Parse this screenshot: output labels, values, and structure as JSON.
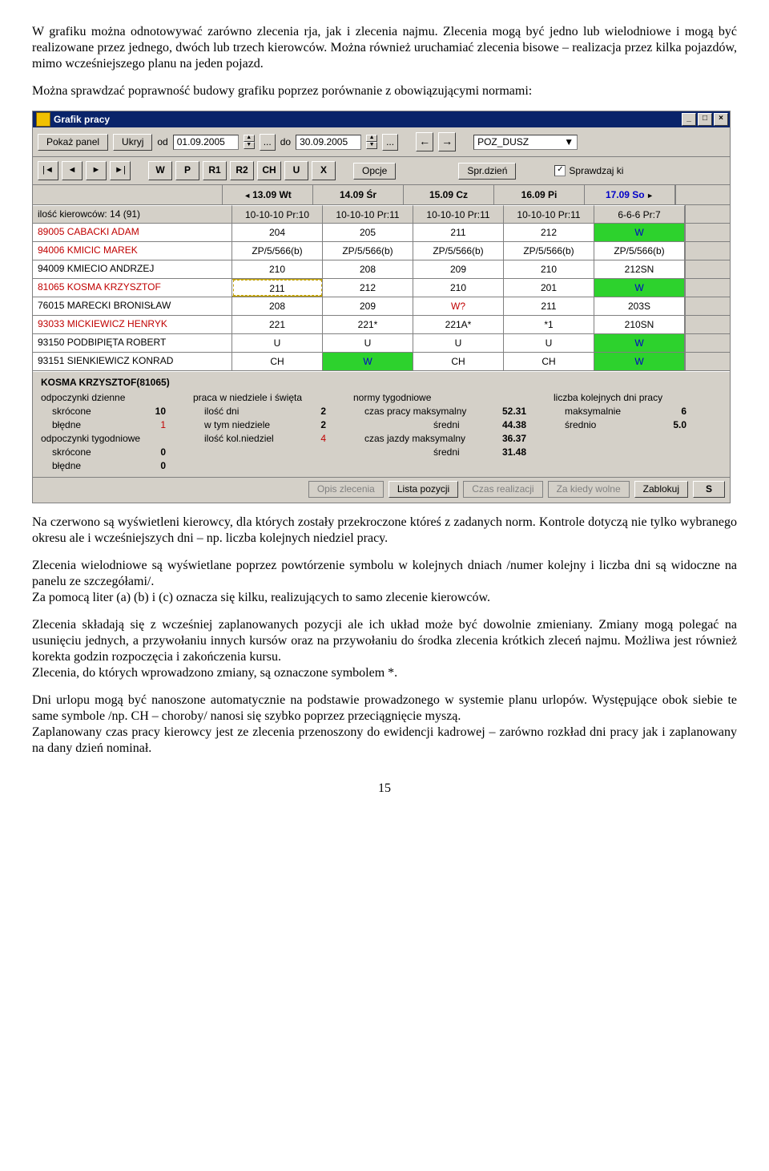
{
  "text": {
    "p1": "W grafiku można odnotowywać zarówno zlecenia rja, jak i zlecenia najmu. Zlecenia mogą być jedno lub wielodniowe i mogą być realizowane przez jednego, dwóch lub trzech kierowców. Można również uruchamiać zlecenia bisowe – realizacja przez kilka pojazdów, mimo wcześniejszego planu na jeden pojazd.",
    "p2": "Można sprawdzać poprawność budowy grafiku poprzez porównanie z obowiązującymi normami:",
    "p3": "Na czerwono są wyświetleni kierowcy, dla których zostały przekroczone któreś z zadanych norm. Kontrole dotyczą nie tylko wybranego okresu ale i wcześniejszych dni – np. liczba kolejnych niedziel pracy.",
    "p4": "Zlecenia wielodniowe są wyświetlane poprzez powtórzenie symbolu w kolejnych dniach /numer kolejny i liczba dni są widoczne na panelu ze szczegółami/.",
    "p5": "Za pomocą liter (a) (b) i (c) oznacza się kilku, realizujących to samo zlecenie kierowców.",
    "p6": "Zlecenia składają się z wcześniej zaplanowanych pozycji ale ich układ może być dowolnie zmieniany. Zmiany mogą polegać na usunięciu jednych, a przywołaniu innych kursów oraz na przywołaniu do środka zlecenia krótkich zleceń najmu. Możliwa jest również korekta godzin rozpoczęcia i zakończenia kursu.",
    "p7": "Zlecenia, do których wprowadzono zmiany, są oznaczone symbolem *.",
    "p8": "Dni urlopu mogą być nanoszone automatycznie na podstawie prowadzonego w systemie planu urlopów. Występujące obok siebie te same symbole /np. CH – choroby/ nanosi się szybko poprzez przeciągnięcie myszą.",
    "p9": "Zaplanowany czas pracy kierowcy jest ze zlecenia przenoszony do ewidencji kadrowej – zarówno rozkład dni pracy jak i zaplanowany na dany dzień nominał.",
    "page": "15"
  },
  "app": {
    "title": "Grafik pracy",
    "toolbar1": {
      "showPanel": "Pokaż panel",
      "hide": "Ukryj",
      "odLabel": "od",
      "odValue": "01.09.2005",
      "doLabel": "do",
      "doValue": "30.09.2005",
      "dots": "...",
      "selectValue": "POZ_DUSZ"
    },
    "toolbar2": {
      "nav": [
        "|◄",
        "◄",
        "►",
        "►|"
      ],
      "letters": [
        "W",
        "P",
        "R1",
        "R2",
        "CH",
        "U",
        "X"
      ],
      "opcje": "Opcje",
      "sprDzien": "Spr.dzień",
      "chk": "Sprawdzaj ki"
    },
    "headerDays": [
      "13.09 Wt",
      "14.09 Śr",
      "15.09 Cz",
      "16.09 Pi",
      "17.09 So"
    ],
    "countRow": {
      "label": "ilość kierowców: 14 (91)",
      "cells": [
        "10-10-10 Pr:10",
        "10-10-10 Pr:11",
        "10-10-10 Pr:11",
        "10-10-10 Pr:11",
        "6-6-6 Pr:7"
      ]
    },
    "drivers": [
      {
        "name": "89005 CABACKI ADAM",
        "red": true,
        "cells": [
          {
            "t": "204"
          },
          {
            "t": "205"
          },
          {
            "t": "211"
          },
          {
            "t": "212"
          },
          {
            "t": "W",
            "green": true
          }
        ]
      },
      {
        "name": "94006 KMICIC MAREK",
        "red": true,
        "cells": [
          {
            "t": "ZP/5/566(b)"
          },
          {
            "t": "ZP/5/566(b)"
          },
          {
            "t": "ZP/5/566(b)"
          },
          {
            "t": "ZP/5/566(b)"
          },
          {
            "t": "ZP/5/566(b)"
          }
        ]
      },
      {
        "name": "94009 KMIECIO ANDRZEJ",
        "red": false,
        "cells": [
          {
            "t": "210"
          },
          {
            "t": "208"
          },
          {
            "t": "209"
          },
          {
            "t": "210"
          },
          {
            "t": "212SN"
          }
        ]
      },
      {
        "name": "81065 KOSMA KRZYSZTOF",
        "red": true,
        "cells": [
          {
            "t": "211",
            "sel": true
          },
          {
            "t": "212"
          },
          {
            "t": "210"
          },
          {
            "t": "201"
          },
          {
            "t": "W",
            "green": true
          }
        ]
      },
      {
        "name": "76015 MARECKI BRONISŁAW",
        "red": false,
        "cells": [
          {
            "t": "208"
          },
          {
            "t": "209"
          },
          {
            "t": "W?",
            "red": true
          },
          {
            "t": "211"
          },
          {
            "t": "203S"
          }
        ]
      },
      {
        "name": "93033 MICKIEWICZ HENRYK",
        "red": true,
        "cells": [
          {
            "t": "221"
          },
          {
            "t": "221*"
          },
          {
            "t": "221A*"
          },
          {
            "t": "*1"
          },
          {
            "t": "210SN"
          }
        ]
      },
      {
        "name": "93150 PODBIPIĘTA ROBERT",
        "red": false,
        "cells": [
          {
            "t": "U"
          },
          {
            "t": "U"
          },
          {
            "t": "U"
          },
          {
            "t": "U"
          },
          {
            "t": "W",
            "green": true
          }
        ]
      },
      {
        "name": "93151 SIENKIEWICZ KONRAD",
        "red": false,
        "cells": [
          {
            "t": "CH"
          },
          {
            "t": "W",
            "green": true
          },
          {
            "t": "CH"
          },
          {
            "t": "CH"
          },
          {
            "t": "W",
            "green": true
          }
        ]
      }
    ],
    "summary": {
      "title": "KOSMA KRZYSZTOF(81065)",
      "c1": {
        "h1": "odpoczynki dzienne",
        "l1": {
          "k": "skrócone",
          "v": "10"
        },
        "l2": {
          "k": "błędne",
          "v": "1",
          "red": true
        },
        "h2": "odpoczynki tygodniowe",
        "l3": {
          "k": "skrócone",
          "v": "0"
        },
        "l4": {
          "k": "błędne",
          "v": "0"
        }
      },
      "c2": {
        "h1": "praca w niedziele i święta",
        "l1": {
          "k": "ilość dni",
          "v": "2"
        },
        "l2": {
          "k": "w tym niedziele",
          "v": "2"
        },
        "l3": {
          "k": "ilość kol.niedziel",
          "v": "4",
          "red": true
        }
      },
      "c3": {
        "h1": "normy tygodniowe",
        "l1": {
          "k": "czas pracy  maksymalny",
          "v": "52.31"
        },
        "l2": {
          "k": "średni",
          "v": "44.38"
        },
        "l3": {
          "k": "czas jazdy maksymalny",
          "v": "36.37"
        },
        "l4": {
          "k": "średni",
          "v": "31.48"
        }
      },
      "c4": {
        "h1": "liczba kolejnych dni pracy",
        "l1": {
          "k": "maksymalnie",
          "v": "6"
        },
        "l2": {
          "k": "średnio",
          "v": "5.0"
        }
      }
    },
    "bottom": {
      "b1": "Opis zlecenia",
      "b2": "Lista pozycji",
      "b3": "Czas realizacji",
      "b4": "Za kiedy wolne",
      "b5": "Zablokuj",
      "b6": "S"
    }
  }
}
